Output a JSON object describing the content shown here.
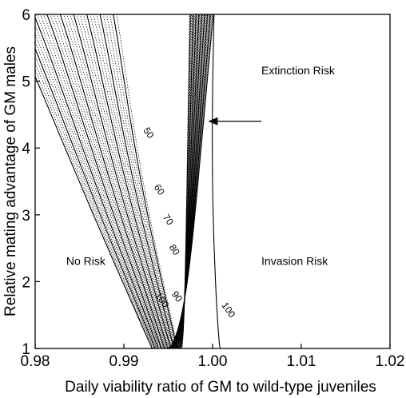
{
  "chart_data": {
    "type": "contour",
    "xlabel": "Daily viability ratio of GM to wild-type juveniles",
    "ylabel": "Relative mating advantage of GM males",
    "xlim": [
      0.98,
      1.02
    ],
    "ylim": [
      1,
      6
    ],
    "xticks": [
      "0.98",
      "0.99",
      "1.00",
      "1.01",
      "1.02"
    ],
    "yticks": [
      "1",
      "2",
      "3",
      "4",
      "5",
      "6"
    ],
    "grid": false,
    "regions": [
      {
        "label": "No Risk",
        "x": 0.9835,
        "y": 2.25
      },
      {
        "label": "Extinction Risk",
        "x": 1.0055,
        "y": 5.1
      },
      {
        "label": "Invasion Risk",
        "x": 1.0055,
        "y": 2.25
      }
    ],
    "arrow": {
      "from": [
        1.0055,
        4.4
      ],
      "to": [
        0.9995,
        4.4
      ]
    },
    "contour_labels": [
      {
        "text": "50",
        "x": 0.9925,
        "y": 4.2
      },
      {
        "text": "60",
        "x": 0.9937,
        "y": 3.35
      },
      {
        "text": "70",
        "x": 0.9947,
        "y": 2.9
      },
      {
        "text": "80",
        "x": 0.9954,
        "y": 2.45
      },
      {
        "text": "90",
        "x": 0.9957,
        "y": 1.75
      },
      {
        "text": "100",
        "x": 0.994,
        "y": 1.7
      },
      {
        "text": "100",
        "x": 1.0015,
        "y": 1.55
      }
    ]
  }
}
